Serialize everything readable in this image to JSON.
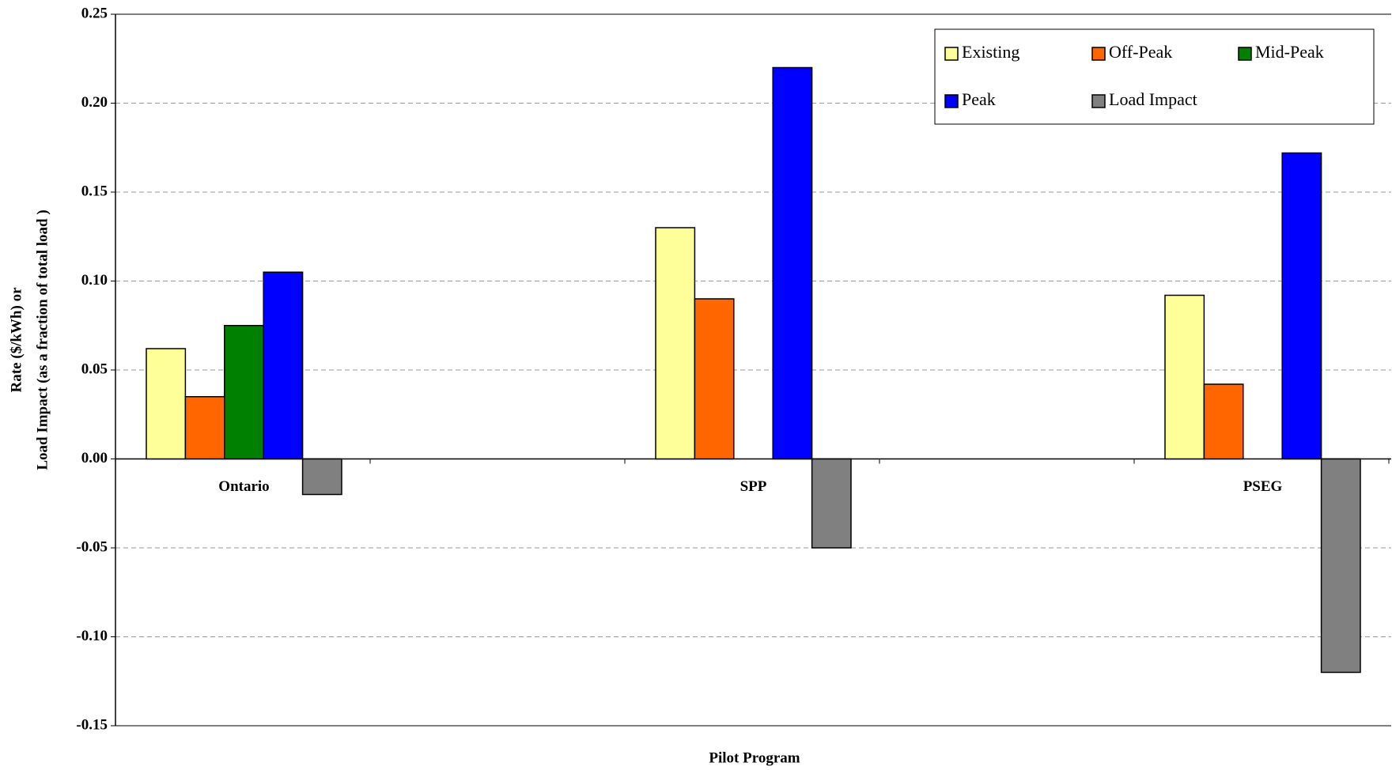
{
  "chart_data": {
    "type": "bar",
    "ylabel": [
      "Rate ($/kWh) or",
      "Load Impact (as a fraction of total load )"
    ],
    "xlabel": "Pilot Program",
    "categories": [
      "Ontario",
      "SPP",
      "PSEG"
    ],
    "series": [
      {
        "name": "Existing",
        "color": "#ffff99",
        "values": [
          0.062,
          0.13,
          0.092
        ]
      },
      {
        "name": "Off-Peak",
        "color": "#ff6600",
        "values": [
          0.035,
          0.09,
          0.042
        ]
      },
      {
        "name": "Mid-Peak",
        "color": "#008000",
        "values": [
          0.075,
          null,
          null
        ]
      },
      {
        "name": "Peak",
        "color": "#0000ff",
        "values": [
          0.105,
          0.22,
          0.172
        ]
      },
      {
        "name": "Load Impact",
        "color": "#808080",
        "values": [
          -0.02,
          -0.05,
          -0.12
        ]
      }
    ],
    "ylim": [
      -0.15,
      0.25
    ],
    "yticks": [
      {
        "value": -0.15,
        "label": "-0.15"
      },
      {
        "value": -0.1,
        "label": "-0.10"
      },
      {
        "value": -0.05,
        "label": "-0.05"
      },
      {
        "value": 0,
        "label": "0.00"
      },
      {
        "value": 0.05,
        "label": "0.05"
      },
      {
        "value": 0.1,
        "label": "0.10"
      },
      {
        "value": 0.15,
        "label": "0.15"
      },
      {
        "value": 0.2,
        "label": "0.20"
      },
      {
        "value": 0.25,
        "label": "0.25"
      }
    ],
    "grid": true,
    "legend": "upper right"
  }
}
